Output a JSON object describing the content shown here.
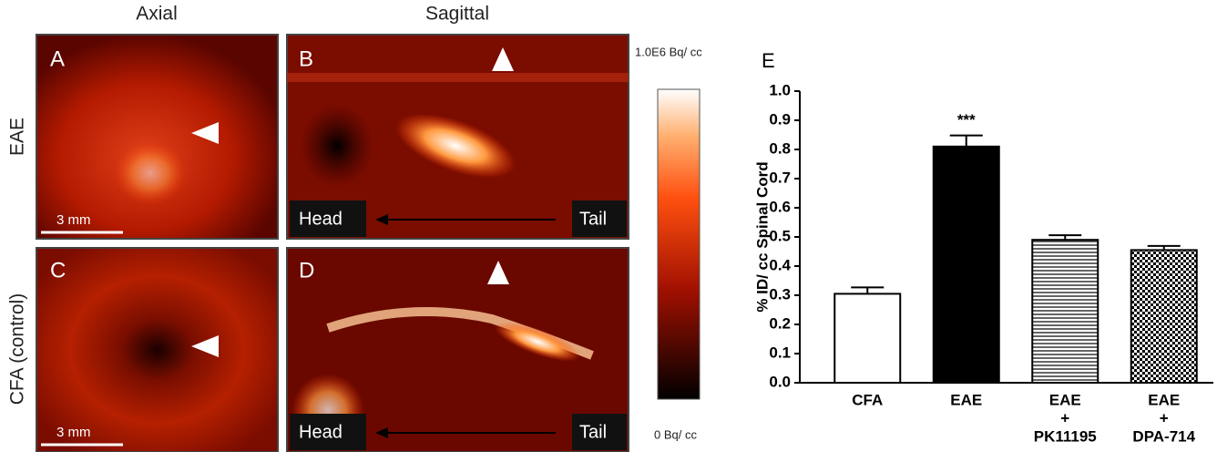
{
  "figure": {
    "column_titles": [
      "Axial",
      "Sagittal"
    ],
    "row_titles": [
      "EAE",
      "CFA (control)"
    ],
    "panels": [
      "A",
      "B",
      "C",
      "D"
    ],
    "scale_bar": "3 mm",
    "head": "Head",
    "tail": "Tail",
    "colorbar": {
      "max": "1.0E6 Bq/ cc",
      "min": "0 Bq/ cc"
    }
  },
  "chart_data": {
    "type": "bar",
    "panel_label": "E",
    "ylabel": "% ID/ cc Spinal Cord",
    "categories": [
      [
        "CFA"
      ],
      [
        "EAE"
      ],
      [
        "EAE",
        "+",
        "PK11195"
      ],
      [
        "EAE",
        "+",
        "DPA-714"
      ]
    ],
    "values": [
      0.305,
      0.81,
      0.49,
      0.455
    ],
    "errors": [
      0.022,
      0.038,
      0.016,
      0.014
    ],
    "significance": [
      null,
      "***",
      null,
      null
    ],
    "fills": [
      "#ffffff",
      "#000000",
      "horizontal-lines",
      "checkerboard"
    ],
    "ylim": [
      0,
      1
    ],
    "yticks": [
      {
        "value": 0,
        "label": "0.0"
      },
      0.1,
      0.2,
      0.3,
      0.4,
      0.5,
      0.6,
      0.7,
      0.8,
      0.9,
      {
        "value": 1,
        "label": "1.0"
      }
    ]
  }
}
